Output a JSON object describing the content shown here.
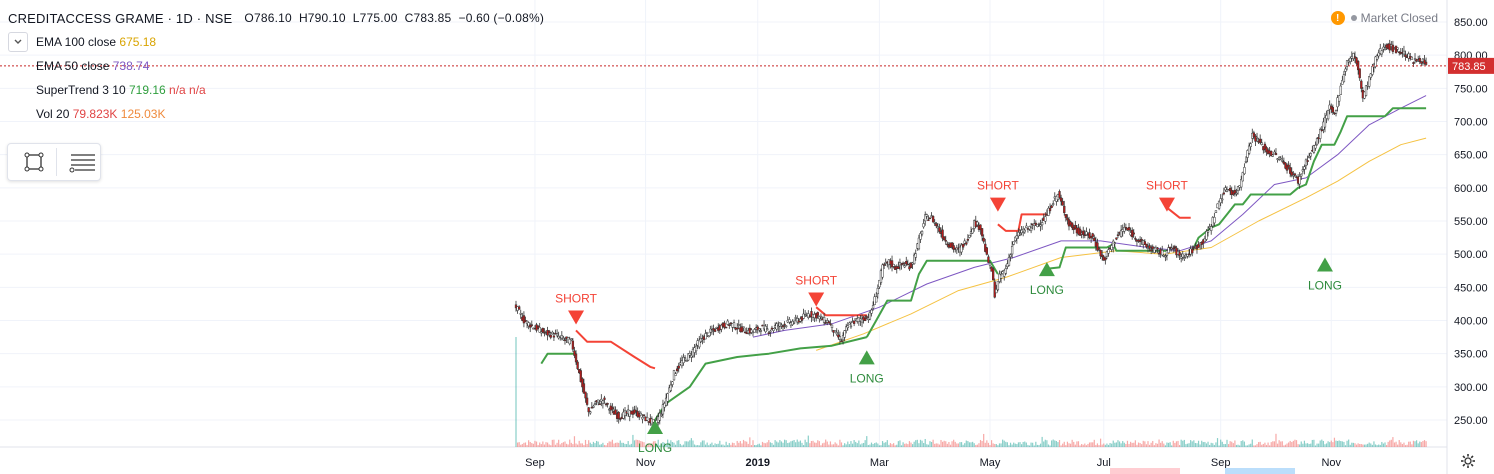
{
  "header": {
    "symbol": "CREDITACCESS GRAME · 1D · NSE",
    "open": "O786.10",
    "high": "H790.10",
    "low": "L775.00",
    "close": "C783.85",
    "change": "−0.60 (−0.08%)"
  },
  "indicators": [
    {
      "label": "EMA 100 close",
      "value": "675.18",
      "color": "#d9a400"
    },
    {
      "label": "EMA 50 close",
      "value": "738.74",
      "color": "#7e57c2"
    },
    {
      "label": "SuperTrend 3 10",
      "value": "719.16",
      "extra": "n/a  n/a",
      "color": "#2e9e3c",
      "extra_color": "#e04444"
    },
    {
      "label": "Vol 20",
      "value": "79.823K",
      "extra": "125.03K",
      "color": "#e04444",
      "extra_color": "#ef8a3c"
    }
  ],
  "market_status": "Market Closed",
  "price_label": "783.85",
  "colors": {
    "up": "#26a69a",
    "down": "#ef5350",
    "candle_up": "#ffffff",
    "candle_down": "#b71c1c",
    "supertrend_up": "#43a047",
    "supertrend_down": "#f44336",
    "ema50": "#7e57c2",
    "ema100": "#f5c242"
  },
  "chart_data": {
    "type": "candlestick",
    "y_ticks": [
      "850.00",
      "800.00",
      "750.00",
      "700.00",
      "650.00",
      "600.00",
      "550.00",
      "500.00",
      "450.00",
      "400.00",
      "350.00",
      "300.00",
      "250.00"
    ],
    "ylim": [
      220,
      870
    ],
    "x_ticks": [
      "Sep",
      "Nov",
      "2019",
      "Mar",
      "May",
      "Jul",
      "Sep",
      "Nov"
    ],
    "close_path": [
      [
        0,
        420
      ],
      [
        5,
        400
      ],
      [
        10,
        392
      ],
      [
        15,
        385
      ],
      [
        20,
        380
      ],
      [
        25,
        378
      ],
      [
        30,
        372
      ],
      [
        35,
        368
      ],
      [
        38,
        340
      ],
      [
        42,
        300
      ],
      [
        46,
        262
      ],
      [
        50,
        275
      ],
      [
        55,
        280
      ],
      [
        60,
        265
      ],
      [
        65,
        255
      ],
      [
        70,
        260
      ],
      [
        75,
        262
      ],
      [
        80,
        255
      ],
      [
        85,
        248
      ],
      [
        88,
        245
      ],
      [
        92,
        262
      ],
      [
        96,
        290
      ],
      [
        100,
        320
      ],
      [
        105,
        338
      ],
      [
        110,
        348
      ],
      [
        115,
        365
      ],
      [
        120,
        378
      ],
      [
        125,
        385
      ],
      [
        130,
        392
      ],
      [
        135,
        395
      ],
      [
        140,
        390
      ],
      [
        145,
        385
      ],
      [
        150,
        383
      ],
      [
        155,
        390
      ],
      [
        160,
        385
      ],
      [
        165,
        392
      ],
      [
        170,
        395
      ],
      [
        175,
        398
      ],
      [
        180,
        402
      ],
      [
        185,
        410
      ],
      [
        190,
        408
      ],
      [
        195,
        400
      ],
      [
        198,
        398
      ],
      [
        202,
        380
      ],
      [
        206,
        370
      ],
      [
        210,
        392
      ],
      [
        215,
        400
      ],
      [
        220,
        403
      ],
      [
        224,
        408
      ],
      [
        228,
        440
      ],
      [
        232,
        480
      ],
      [
        236,
        488
      ],
      [
        240,
        480
      ],
      [
        245,
        485
      ],
      [
        250,
        482
      ],
      [
        255,
        520
      ],
      [
        259,
        555
      ],
      [
        263,
        555
      ],
      [
        267,
        540
      ],
      [
        272,
        520
      ],
      [
        276,
        510
      ],
      [
        280,
        505
      ],
      [
        285,
        520
      ],
      [
        290,
        548
      ],
      [
        294,
        540
      ],
      [
        298,
        495
      ],
      [
        301,
        475
      ],
      [
        303,
        440
      ],
      [
        306,
        465
      ],
      [
        310,
        478
      ],
      [
        315,
        520
      ],
      [
        320,
        535
      ],
      [
        325,
        540
      ],
      [
        330,
        545
      ],
      [
        335,
        555
      ],
      [
        340,
        580
      ],
      [
        343,
        590
      ],
      [
        347,
        565
      ],
      [
        350,
        545
      ],
      [
        355,
        535
      ],
      [
        360,
        530
      ],
      [
        365,
        525
      ],
      [
        368,
        510
      ],
      [
        372,
        490
      ],
      [
        375,
        505
      ],
      [
        380,
        525
      ],
      [
        385,
        540
      ],
      [
        390,
        530
      ],
      [
        395,
        520
      ],
      [
        400,
        510
      ],
      [
        405,
        505
      ],
      [
        410,
        500
      ],
      [
        415,
        510
      ],
      [
        420,
        498
      ],
      [
        425,
        500
      ],
      [
        430,
        510
      ],
      [
        435,
        520
      ],
      [
        440,
        545
      ],
      [
        445,
        580
      ],
      [
        450,
        600
      ],
      [
        455,
        590
      ],
      [
        458,
        605
      ],
      [
        462,
        645
      ],
      [
        466,
        680
      ],
      [
        470,
        670
      ],
      [
        475,
        655
      ],
      [
        480,
        650
      ],
      [
        485,
        640
      ],
      [
        490,
        625
      ],
      [
        495,
        610
      ],
      [
        500,
        640
      ],
      [
        505,
        660
      ],
      [
        510,
        690
      ],
      [
        515,
        720
      ],
      [
        518,
        710
      ],
      [
        522,
        755
      ],
      [
        526,
        790
      ],
      [
        530,
        800
      ],
      [
        533,
        780
      ],
      [
        536,
        735
      ],
      [
        540,
        765
      ],
      [
        545,
        800
      ],
      [
        550,
        815
      ],
      [
        555,
        810
      ],
      [
        560,
        805
      ],
      [
        564,
        800
      ],
      [
        568,
        790
      ],
      [
        572,
        795
      ],
      [
        576,
        784
      ]
    ],
    "ema50_path": [
      [
        150,
        375
      ],
      [
        170,
        385
      ],
      [
        200,
        395
      ],
      [
        230,
        420
      ],
      [
        260,
        455
      ],
      [
        290,
        480
      ],
      [
        315,
        495
      ],
      [
        345,
        520
      ],
      [
        370,
        520
      ],
      [
        400,
        510
      ],
      [
        420,
        505
      ],
      [
        440,
        520
      ],
      [
        460,
        560
      ],
      [
        480,
        605
      ],
      [
        500,
        615
      ],
      [
        520,
        650
      ],
      [
        540,
        695
      ],
      [
        560,
        720
      ],
      [
        576,
        739
      ]
    ],
    "ema100_path": [
      [
        190,
        355
      ],
      [
        220,
        380
      ],
      [
        250,
        410
      ],
      [
        280,
        445
      ],
      [
        310,
        465
      ],
      [
        345,
        495
      ],
      [
        380,
        505
      ],
      [
        410,
        500
      ],
      [
        440,
        510
      ],
      [
        470,
        550
      ],
      [
        500,
        585
      ],
      [
        520,
        610
      ],
      [
        540,
        640
      ],
      [
        560,
        665
      ],
      [
        576,
        675
      ]
    ],
    "supertrend_long": [
      [
        [
          16,
          335
        ],
        [
          20,
          350
        ],
        [
          38,
          350
        ]
      ],
      [
        [
          88,
          250
        ],
        [
          95,
          275
        ],
        [
          110,
          300
        ],
        [
          120,
          335
        ],
        [
          140,
          345
        ],
        [
          160,
          350
        ],
        [
          180,
          358
        ],
        [
          200,
          362
        ],
        [
          222,
          375
        ]
      ],
      [
        [
          222,
          375
        ],
        [
          228,
          400
        ],
        [
          235,
          430
        ],
        [
          250,
          430
        ],
        [
          255,
          470
        ],
        [
          260,
          490
        ],
        [
          300,
          490
        ],
        [
          305,
          470
        ]
      ],
      [
        [
          336,
          478
        ],
        [
          344,
          480
        ],
        [
          348,
          510
        ],
        [
          360,
          510
        ],
        [
          374,
          510
        ],
        [
          378,
          515
        ],
        [
          380,
          505
        ],
        [
          395,
          505
        ],
        [
          412,
          505
        ]
      ],
      [
        [
          427,
          500
        ],
        [
          432,
          525
        ],
        [
          440,
          540
        ],
        [
          445,
          545
        ],
        [
          450,
          560
        ],
        [
          455,
          575
        ],
        [
          460,
          575
        ],
        [
          465,
          590
        ],
        [
          490,
          590
        ],
        [
          495,
          600
        ],
        [
          500,
          605
        ],
        [
          505,
          640
        ],
        [
          510,
          665
        ],
        [
          518,
          665
        ],
        [
          522,
          685
        ],
        [
          526,
          708
        ],
        [
          550,
          708
        ],
        [
          555,
          720
        ],
        [
          576,
          720
        ]
      ]
    ],
    "supertrend_short": [
      [
        [
          38,
          385
        ],
        [
          45,
          368
        ],
        [
          60,
          368
        ],
        [
          75,
          345
        ],
        [
          85,
          330
        ],
        [
          88,
          328
        ]
      ],
      [
        [
          190,
          420
        ],
        [
          196,
          408
        ],
        [
          222,
          408
        ]
      ],
      [
        [
          305,
          545
        ],
        [
          310,
          535
        ],
        [
          318,
          535
        ],
        [
          320,
          560
        ],
        [
          336,
          560
        ]
      ],
      [
        [
          412,
          570
        ],
        [
          420,
          555
        ],
        [
          427,
          555
        ],
        [
          427,
          555
        ]
      ]
    ],
    "signals": [
      {
        "label": "SHORT",
        "type": "short",
        "i": 38,
        "price": 385
      },
      {
        "label": "LONG",
        "type": "long",
        "i": 88,
        "price": 250
      },
      {
        "label": "SHORT",
        "type": "short",
        "i": 190,
        "price": 412
      },
      {
        "label": "LONG",
        "type": "long",
        "i": 222,
        "price": 355
      },
      {
        "label": "SHORT",
        "type": "short",
        "i": 305,
        "price": 555
      },
      {
        "label": "LONG",
        "type": "long",
        "i": 336,
        "price": 488
      },
      {
        "label": "SHORT",
        "type": "short",
        "i": 412,
        "price": 555
      },
      {
        "label": "LONG",
        "type": "long",
        "i": 512,
        "price": 495
      }
    ]
  }
}
